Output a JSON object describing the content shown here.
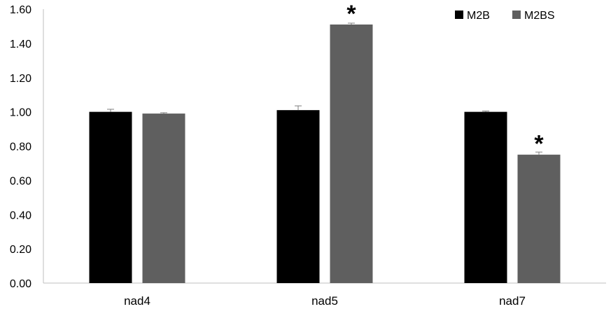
{
  "chart_data": {
    "type": "bar",
    "categories": [
      "nad4",
      "nad5",
      "nad7"
    ],
    "series": [
      {
        "name": "M2B",
        "color": "#000000",
        "values": [
          1.0,
          1.01,
          1.0
        ],
        "errors": [
          0.015,
          0.025,
          0.005
        ],
        "significance": [
          "",
          "",
          ""
        ]
      },
      {
        "name": "M2BS",
        "color": "#5f5f5f",
        "values": [
          0.99,
          1.51,
          0.75
        ],
        "errors": [
          0.005,
          0.008,
          0.015
        ],
        "significance": [
          "",
          "*",
          "*"
        ]
      }
    ],
    "yticks": [
      "0.00",
      "0.20",
      "0.40",
      "0.60",
      "0.80",
      "1.00",
      "1.20",
      "1.40",
      "1.60"
    ],
    "ylim": [
      0,
      1.6
    ],
    "title": "",
    "xlabel": "",
    "ylabel": "",
    "grid": false,
    "legend_position": "top-right",
    "error_bars": true
  }
}
